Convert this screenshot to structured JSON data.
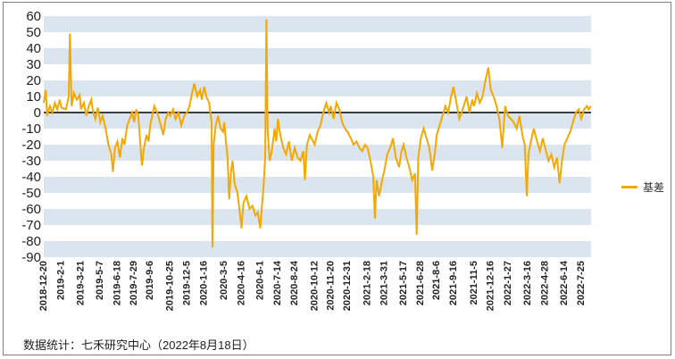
{
  "footer_note": "数据统计：七禾研究中心（2022年8月18日）",
  "chart_data": {
    "type": "line",
    "title": "",
    "xlabel": "",
    "ylabel": "",
    "ylim": [
      -90,
      60
    ],
    "y_ticks": [
      60,
      50,
      40,
      30,
      20,
      10,
      0,
      -10,
      -20,
      -30,
      -40,
      -50,
      -60,
      -70,
      -80,
      -90
    ],
    "grid": "alternating horizontal bands",
    "legend_position": "right",
    "colors": {
      "series": "#f5a800",
      "band": "#dbe5f0",
      "zero_line": "#000000"
    },
    "x_tick_labels": [
      "2018-12-20",
      "2019-2-1",
      "2019-3-21",
      "2019-5-7",
      "2019-6-18",
      "2019-7-29",
      "2019-9-6",
      "2019-10-25",
      "2019-12-5",
      "2020-1-16",
      "2020-3-5",
      "2020-4-16",
      "2020-6-1",
      "2020-7-14",
      "2020-8-24",
      "2020-10-12",
      "2020-11-20",
      "2020-12-31",
      "2021-2-18",
      "2021-3-31",
      "2021-5-17",
      "2021-6-28",
      "2021-8-6",
      "2021-9-16",
      "2021-11-5",
      "2021-12-16",
      "2022-1-27",
      "2022-3-16",
      "2022-4-28",
      "2022-6-14",
      "2022-7-25"
    ],
    "x_range": [
      "2018-12-20",
      "2022-8-18"
    ],
    "series": [
      {
        "name": "基差",
        "points": [
          [
            "2018-12-20",
            6
          ],
          [
            "2018-12-25",
            14
          ],
          [
            "2018-12-28",
            -2
          ],
          [
            "2019-1-4",
            4
          ],
          [
            "2019-1-10",
            0
          ],
          [
            "2019-1-16",
            6
          ],
          [
            "2019-1-22",
            2
          ],
          [
            "2019-1-28",
            8
          ],
          [
            "2019-2-1",
            3
          ],
          [
            "2019-2-12",
            2
          ],
          [
            "2019-2-19",
            10
          ],
          [
            "2019-2-22",
            49
          ],
          [
            "2019-2-26",
            4
          ],
          [
            "2019-3-4",
            12
          ],
          [
            "2019-3-11",
            8
          ],
          [
            "2019-3-18",
            11
          ],
          [
            "2019-3-21",
            2
          ],
          [
            "2019-3-28",
            6
          ],
          [
            "2019-4-3",
            -2
          ],
          [
            "2019-4-9",
            4
          ],
          [
            "2019-4-15",
            8
          ],
          [
            "2019-4-19",
            1
          ],
          [
            "2019-4-25",
            -4
          ],
          [
            "2019-5-1",
            3
          ],
          [
            "2019-5-7",
            -6
          ],
          [
            "2019-5-13",
            -2
          ],
          [
            "2019-5-20",
            -10
          ],
          [
            "2019-5-27",
            -20
          ],
          [
            "2019-6-3",
            -26
          ],
          [
            "2019-6-7",
            -37
          ],
          [
            "2019-6-12",
            -22
          ],
          [
            "2019-6-18",
            -18
          ],
          [
            "2019-6-24",
            -28
          ],
          [
            "2019-6-30",
            -16
          ],
          [
            "2019-7-5",
            -20
          ],
          [
            "2019-7-12",
            -8
          ],
          [
            "2019-7-18",
            -4
          ],
          [
            "2019-7-24",
            0
          ],
          [
            "2019-7-29",
            -6
          ],
          [
            "2019-8-3",
            2
          ],
          [
            "2019-8-8",
            -2
          ],
          [
            "2019-8-13",
            -20
          ],
          [
            "2019-8-17",
            -33
          ],
          [
            "2019-8-22",
            -22
          ],
          [
            "2019-8-28",
            -14
          ],
          [
            "2019-9-2",
            -18
          ],
          [
            "2019-9-6",
            -8
          ],
          [
            "2019-9-11",
            -2
          ],
          [
            "2019-9-16",
            4
          ],
          [
            "2019-9-23",
            0
          ],
          [
            "2019-9-30",
            -6
          ],
          [
            "2019-10-8",
            -14
          ],
          [
            "2019-10-14",
            -4
          ],
          [
            "2019-10-20",
            0
          ],
          [
            "2019-10-25",
            -2
          ],
          [
            "2019-11-1",
            2
          ],
          [
            "2019-11-7",
            -4
          ],
          [
            "2019-11-14",
            0
          ],
          [
            "2019-11-21",
            -8
          ],
          [
            "2019-11-28",
            -2
          ],
          [
            "2019-12-5",
            0
          ],
          [
            "2019-12-11",
            4
          ],
          [
            "2019-12-17",
            12
          ],
          [
            "2019-12-23",
            18
          ],
          [
            "2019-12-30",
            10
          ],
          [
            "2020-1-6",
            14
          ],
          [
            "2020-1-10",
            8
          ],
          [
            "2020-1-16",
            16
          ],
          [
            "2020-1-21",
            10
          ],
          [
            "2020-1-28",
            6
          ],
          [
            "2020-2-3",
            -6
          ],
          [
            "2020-2-5",
            -84
          ],
          [
            "2020-2-8",
            -20
          ],
          [
            "2020-2-13",
            -8
          ],
          [
            "2020-2-19",
            -2
          ],
          [
            "2020-2-25",
            -10
          ],
          [
            "2020-3-2",
            -12
          ],
          [
            "2020-3-5",
            -6
          ],
          [
            "2020-3-9",
            -18
          ],
          [
            "2020-3-13",
            -28
          ],
          [
            "2020-3-17",
            -54
          ],
          [
            "2020-3-21",
            -38
          ],
          [
            "2020-3-25",
            -30
          ],
          [
            "2020-3-30",
            -44
          ],
          [
            "2020-4-6",
            -50
          ],
          [
            "2020-4-12",
            -62
          ],
          [
            "2020-4-16",
            -72
          ],
          [
            "2020-4-21",
            -56
          ],
          [
            "2020-4-28",
            -52
          ],
          [
            "2020-5-6",
            -60
          ],
          [
            "2020-5-13",
            -58
          ],
          [
            "2020-5-20",
            -64
          ],
          [
            "2020-5-26",
            -62
          ],
          [
            "2020-6-1",
            -72
          ],
          [
            "2020-6-5",
            -58
          ],
          [
            "2020-6-9",
            -46
          ],
          [
            "2020-6-13",
            -28
          ],
          [
            "2020-6-16",
            58
          ],
          [
            "2020-6-19",
            -12
          ],
          [
            "2020-6-24",
            -30
          ],
          [
            "2020-6-29",
            -24
          ],
          [
            "2020-7-6",
            -10
          ],
          [
            "2020-7-10",
            -18
          ],
          [
            "2020-7-14",
            -4
          ],
          [
            "2020-7-20",
            -14
          ],
          [
            "2020-7-27",
            -22
          ],
          [
            "2020-8-3",
            -26
          ],
          [
            "2020-8-10",
            -18
          ],
          [
            "2020-8-17",
            -30
          ],
          [
            "2020-8-24",
            -22
          ],
          [
            "2020-8-31",
            -28
          ],
          [
            "2020-9-7",
            -30
          ],
          [
            "2020-9-14",
            -24
          ],
          [
            "2020-9-18",
            -42
          ],
          [
            "2020-9-23",
            -20
          ],
          [
            "2020-9-30",
            -14
          ],
          [
            "2020-10-12",
            -20
          ],
          [
            "2020-10-19",
            -12
          ],
          [
            "2020-10-26",
            -8
          ],
          [
            "2020-11-2",
            0
          ],
          [
            "2020-11-9",
            6
          ],
          [
            "2020-11-16",
            0
          ],
          [
            "2020-11-20",
            4
          ],
          [
            "2020-11-27",
            -4
          ],
          [
            "2020-12-4",
            6
          ],
          [
            "2020-12-11",
            2
          ],
          [
            "2020-12-18",
            -6
          ],
          [
            "2020-12-25",
            -10
          ],
          [
            "2020-12-31",
            -12
          ],
          [
            "2021-1-8",
            -16
          ],
          [
            "2021-1-15",
            -20
          ],
          [
            "2021-1-22",
            -18
          ],
          [
            "2021-1-29",
            -22
          ],
          [
            "2021-2-5",
            -24
          ],
          [
            "2021-2-12",
            -20
          ],
          [
            "2021-2-18",
            -22
          ],
          [
            "2021-2-25",
            -30
          ],
          [
            "2021-3-4",
            -40
          ],
          [
            "2021-3-8",
            -66
          ],
          [
            "2021-3-12",
            -42
          ],
          [
            "2021-3-18",
            -52
          ],
          [
            "2021-3-24",
            -44
          ],
          [
            "2021-3-31",
            -36
          ],
          [
            "2021-4-7",
            -26
          ],
          [
            "2021-4-14",
            -22
          ],
          [
            "2021-4-21",
            -16
          ],
          [
            "2021-4-28",
            -28
          ],
          [
            "2021-5-6",
            -34
          ],
          [
            "2021-5-12",
            -24
          ],
          [
            "2021-5-17",
            -20
          ],
          [
            "2021-5-24",
            -28
          ],
          [
            "2021-5-31",
            -34
          ],
          [
            "2021-6-7",
            -42
          ],
          [
            "2021-6-14",
            -38
          ],
          [
            "2021-6-18",
            -76
          ],
          [
            "2021-6-22",
            -28
          ],
          [
            "2021-6-28",
            -16
          ],
          [
            "2021-7-5",
            -10
          ],
          [
            "2021-7-12",
            -16
          ],
          [
            "2021-7-19",
            -22
          ],
          [
            "2021-7-26",
            -36
          ],
          [
            "2021-8-2",
            -24
          ],
          [
            "2021-8-6",
            -14
          ],
          [
            "2021-8-13",
            -8
          ],
          [
            "2021-8-20",
            -2
          ],
          [
            "2021-8-27",
            4
          ],
          [
            "2021-9-3",
            0
          ],
          [
            "2021-9-10",
            10
          ],
          [
            "2021-9-16",
            16
          ],
          [
            "2021-9-23",
            6
          ],
          [
            "2021-9-30",
            -4
          ],
          [
            "2021-10-11",
            4
          ],
          [
            "2021-10-18",
            10
          ],
          [
            "2021-10-25",
            0
          ],
          [
            "2021-11-1",
            8
          ],
          [
            "2021-11-5",
            4
          ],
          [
            "2021-11-12",
            12
          ],
          [
            "2021-11-19",
            6
          ],
          [
            "2021-11-26",
            10
          ],
          [
            "2021-12-3",
            20
          ],
          [
            "2021-12-10",
            28
          ],
          [
            "2021-12-16",
            14
          ],
          [
            "2021-12-23",
            10
          ],
          [
            "2021-12-30",
            4
          ],
          [
            "2022-1-6",
            -4
          ],
          [
            "2022-1-13",
            -22
          ],
          [
            "2022-1-20",
            4
          ],
          [
            "2022-1-27",
            -2
          ],
          [
            "2022-2-10",
            -6
          ],
          [
            "2022-2-17",
            -10
          ],
          [
            "2022-2-24",
            -2
          ],
          [
            "2022-3-3",
            -14
          ],
          [
            "2022-3-9",
            -20
          ],
          [
            "2022-3-14",
            -52
          ],
          [
            "2022-3-18",
            -26
          ],
          [
            "2022-3-24",
            -18
          ],
          [
            "2022-3-31",
            -10
          ],
          [
            "2022-4-8",
            -18
          ],
          [
            "2022-4-15",
            -24
          ],
          [
            "2022-4-22",
            -16
          ],
          [
            "2022-4-28",
            -22
          ],
          [
            "2022-5-6",
            -30
          ],
          [
            "2022-5-13",
            -26
          ],
          [
            "2022-5-20",
            -34
          ],
          [
            "2022-5-27",
            -28
          ],
          [
            "2022-6-2",
            -44
          ],
          [
            "2022-6-8",
            -30
          ],
          [
            "2022-6-14",
            -20
          ],
          [
            "2022-6-21",
            -16
          ],
          [
            "2022-6-28",
            -12
          ],
          [
            "2022-7-5",
            -6
          ],
          [
            "2022-7-12",
            0
          ],
          [
            "2022-7-19",
            2
          ],
          [
            "2022-7-25",
            -4
          ],
          [
            "2022-8-1",
            2
          ],
          [
            "2022-8-8",
            4
          ],
          [
            "2022-8-12",
            2
          ],
          [
            "2022-8-18",
            4
          ]
        ]
      }
    ]
  }
}
